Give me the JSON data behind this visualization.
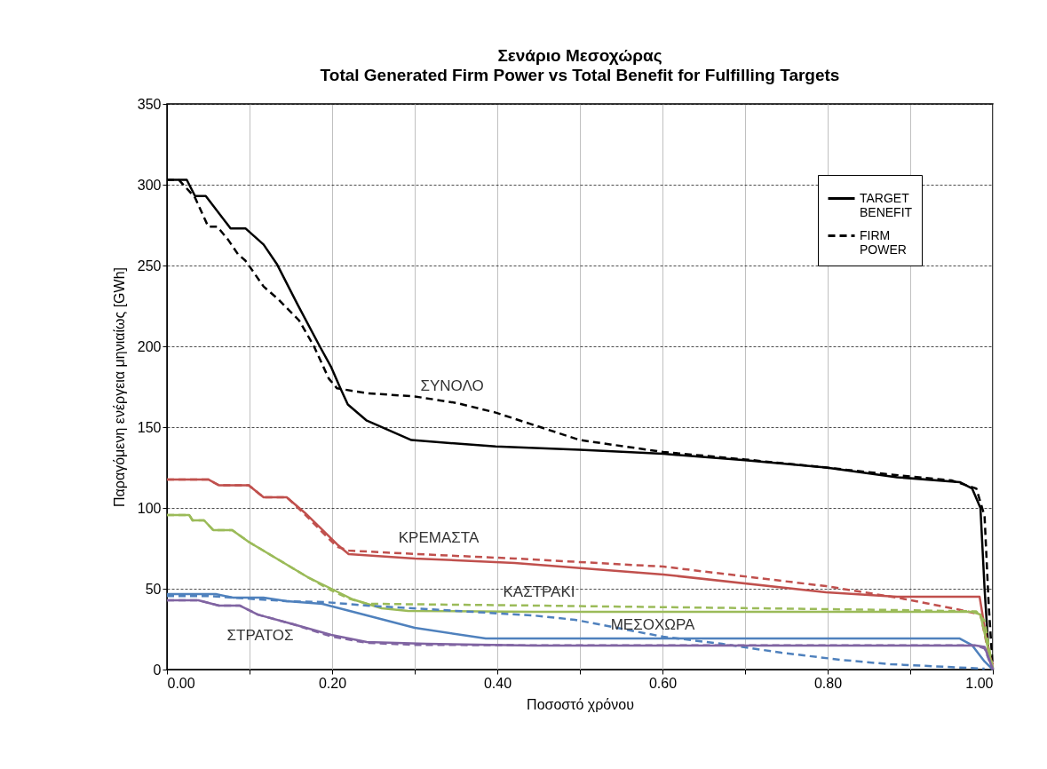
{
  "chart_data": {
    "type": "line",
    "title": "Σενάριο Μεσοχώρας",
    "subtitle": "Total Generated Firm Power vs Total Benefit for Fulfilling Targets",
    "xlabel": "Ποσοστό χρόνου",
    "ylabel": "Παραγόμενη ενέργεια μηνιαίως [GWh]",
    "xlim": [
      0,
      1
    ],
    "ylim": [
      0,
      350
    ],
    "xticks": [
      {
        "value": 0,
        "label": "0.00"
      },
      {
        "value": 0.1,
        "label": null
      },
      {
        "value": 0.2,
        "label": "0.20"
      },
      {
        "value": 0.3,
        "label": null
      },
      {
        "value": 0.4,
        "label": "0.40"
      },
      {
        "value": 0.5,
        "label": null
      },
      {
        "value": 0.6,
        "label": "0.60"
      },
      {
        "value": 0.7,
        "label": null
      },
      {
        "value": 0.8,
        "label": "0.80"
      },
      {
        "value": 0.9,
        "label": null
      },
      {
        "value": 1,
        "label": "1.00"
      }
    ],
    "yticks": [
      0,
      50,
      100,
      150,
      200,
      250,
      300,
      350
    ],
    "grid": true,
    "legend": "top right",
    "series": [
      {
        "name": "TARGET BENEFIT",
        "color": "#000000",
        "line_style": "solid",
        "x": [
          0,
          0.024,
          0.034,
          0.047,
          0.077,
          0.095,
          0.117,
          0.133,
          0.158,
          0.185,
          0.199,
          0.21,
          0.219,
          0.242,
          0.296,
          0.398,
          0.5,
          0.601,
          0.7,
          0.798,
          0.884,
          0.96,
          0.975,
          0.985,
          0.99,
          0.995,
          1.0
        ],
        "values": [
          303,
          303,
          293,
          293,
          273,
          273,
          263,
          251,
          226,
          200,
          187,
          174,
          164,
          154,
          142,
          138,
          136,
          133.5,
          129.5,
          125,
          119,
          116,
          112,
          100,
          50,
          10,
          0
        ]
      },
      {
        "name": "FIRM POWER",
        "color": "#000000",
        "line_style": "dashed",
        "x": [
          0,
          0.015,
          0.034,
          0.05,
          0.061,
          0.074,
          0.086,
          0.095,
          0.102,
          0.117,
          0.135,
          0.16,
          0.178,
          0.196,
          0.206,
          0.242,
          0.3,
          0.35,
          0.398,
          0.44,
          0.5,
          0.601,
          0.7,
          0.798,
          0.87,
          0.95,
          0.98,
          0.99,
          0.995,
          1.0
        ],
        "values": [
          303,
          302.7,
          292,
          274,
          274,
          266,
          257,
          253,
          248,
          237,
          229,
          216,
          200,
          180,
          174,
          171,
          169,
          165,
          159,
          152,
          142,
          134.6,
          130,
          125,
          121,
          117,
          112,
          95,
          40,
          0
        ]
      },
      {
        "color": "#c0504d",
        "line_style": "solid",
        "x": [
          0,
          0.05,
          0.063,
          0.099,
          0.117,
          0.145,
          0.167,
          0.192,
          0.206,
          0.22,
          0.3,
          0.421,
          0.601,
          0.798,
          0.884,
          0.984,
          0.992,
          1.0
        ],
        "values": [
          117.6,
          117.6,
          114,
          114,
          106.6,
          106.6,
          97,
          84.6,
          77.5,
          71.4,
          68.7,
          66,
          58.8,
          47.8,
          45,
          45,
          20,
          0
        ]
      },
      {
        "color": "#c0504d",
        "line_style": "dashed",
        "x": [
          0,
          0.05,
          0.063,
          0.099,
          0.117,
          0.145,
          0.167,
          0.192,
          0.206,
          0.22,
          0.3,
          0.421,
          0.601,
          0.798,
          0.884,
          0.96,
          0.985,
          0.995,
          1.0
        ],
        "values": [
          117.6,
          117.6,
          114,
          114,
          106.6,
          106.6,
          96,
          83,
          76,
          73.6,
          71.5,
          68.7,
          63.7,
          51.6,
          44.5,
          37,
          34,
          10,
          3
        ]
      },
      {
        "color": "#9bbb59",
        "line_style": "solid",
        "x": [
          0,
          0.027,
          0.031,
          0.045,
          0.056,
          0.079,
          0.099,
          0.135,
          0.171,
          0.199,
          0.225,
          0.26,
          0.292,
          0.443,
          0.6,
          0.8,
          0.975,
          0.985,
          1.0
        ],
        "values": [
          95.6,
          95.6,
          92.3,
          92.3,
          86.3,
          86.3,
          79,
          68,
          57,
          50,
          43.4,
          37.9,
          36.3,
          35.7,
          35.7,
          35.7,
          35.7,
          34,
          0
        ]
      },
      {
        "color": "#9bbb59",
        "line_style": "dashed",
        "x": [
          0,
          0.027,
          0.031,
          0.045,
          0.056,
          0.079,
          0.099,
          0.135,
          0.171,
          0.199,
          0.22,
          0.242,
          0.443,
          0.7,
          0.884,
          0.98,
          0.99,
          1.0
        ],
        "values": [
          95.6,
          95.6,
          92.3,
          92.3,
          86.3,
          86.3,
          79,
          68,
          57,
          49,
          44,
          40.7,
          39.6,
          38,
          36.8,
          36,
          30,
          0
        ]
      },
      {
        "color": "#4f81bd",
        "line_style": "solid",
        "x": [
          0,
          0.059,
          0.08,
          0.117,
          0.145,
          0.188,
          0.242,
          0.3,
          0.386,
          0.6,
          0.8,
          0.96,
          0.975,
          0.99,
          1.0
        ],
        "values": [
          46.7,
          46.7,
          44.5,
          44.5,
          42.3,
          40.7,
          33.5,
          25.8,
          19.2,
          19.2,
          19.2,
          19.2,
          15,
          5,
          0
        ]
      },
      {
        "color": "#4f81bd",
        "line_style": "dashed",
        "x": [
          0,
          0.05,
          0.08,
          0.145,
          0.192,
          0.242,
          0.35,
          0.443,
          0.494,
          0.601,
          0.672,
          0.744,
          0.816,
          0.876,
          0.95,
          0.99
        ],
        "values": [
          45.5,
          45.5,
          44.5,
          42.3,
          41.7,
          39.6,
          36.3,
          33.5,
          30.8,
          20.3,
          15.9,
          10.4,
          6,
          3.3,
          1.5,
          0.5
        ]
      },
      {
        "color": "#8064a2",
        "line_style": "solid",
        "x": [
          0,
          0.038,
          0.063,
          0.088,
          0.11,
          0.153,
          0.199,
          0.242,
          0.314,
          0.443,
          0.7,
          0.98,
          0.99,
          1.0
        ],
        "values": [
          42.9,
          42.9,
          39.6,
          39.6,
          34,
          28,
          21.4,
          17,
          15.9,
          14.8,
          14.8,
          14.8,
          14,
          0
        ]
      },
      {
        "color": "#8064a2",
        "line_style": "dashed",
        "x": [
          0,
          0.038,
          0.063,
          0.088,
          0.11,
          0.153,
          0.199,
          0.242,
          0.3,
          0.443,
          0.7,
          0.98,
          0.99,
          1.0
        ],
        "values": [
          42.9,
          42.9,
          39.6,
          39.6,
          34,
          28,
          20.5,
          16.5,
          15.3,
          15,
          15,
          15,
          13,
          0
        ]
      }
    ],
    "annotations": [
      "ΣΥΝΟΛΟ",
      "ΚΡΕΜΑΣΤΑ",
      "ΚΑΣΤΡΑΚΙ",
      "ΜΕΣΟΧΩΡΑ",
      "ΣΤΡΑΤΟΣ"
    ]
  }
}
